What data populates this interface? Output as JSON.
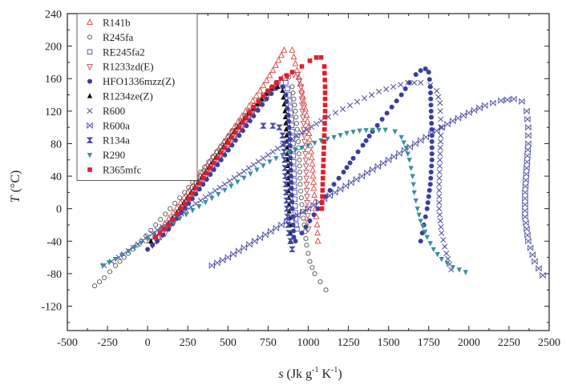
{
  "chart_data": {
    "type": "scatter",
    "title": "",
    "xlabel_main": "s",
    "xlabel_unit": " (Jk g",
    "xlabel_exp1": "-1",
    "xlabel_mid": " K",
    "xlabel_exp2": "-1",
    "xlabel_end": ")",
    "ylabel_main": "T",
    "ylabel_unit": " (°C)",
    "xlim": [
      -500,
      2500
    ],
    "ylim": [
      -150,
      240
    ],
    "xticks": [
      -500,
      -250,
      0,
      250,
      500,
      750,
      1000,
      1250,
      1500,
      1750,
      2000,
      2250,
      2500
    ],
    "yticks": [
      -120,
      -80,
      -40,
      0,
      40,
      80,
      120,
      160,
      200,
      240
    ],
    "grid": false,
    "legend_position": "top-left",
    "series": [
      {
        "name": "R141b",
        "marker": "triangle-up-open",
        "color": "#e0403a",
        "points": [
          [
            10,
            -40
          ],
          [
            80,
            -25
          ],
          [
            160,
            -5
          ],
          [
            250,
            20
          ],
          [
            340,
            45
          ],
          [
            430,
            70
          ],
          [
            520,
            95
          ],
          [
            610,
            120
          ],
          [
            700,
            145
          ],
          [
            780,
            170
          ],
          [
            850,
            195
          ],
          [
            900,
            195
          ],
          [
            930,
            170
          ],
          [
            960,
            145
          ],
          [
            990,
            115
          ],
          [
            1010,
            85
          ],
          [
            1025,
            55
          ],
          [
            1035,
            25
          ],
          [
            1045,
            0
          ],
          [
            1055,
            -20
          ],
          [
            1060,
            -40
          ]
        ]
      },
      {
        "name": "R245fa",
        "marker": "circle-open",
        "color": "#555555",
        "points": [
          [
            -330,
            -95
          ],
          [
            -270,
            -85
          ],
          [
            -200,
            -70
          ],
          [
            -120,
            -55
          ],
          [
            -40,
            -40
          ],
          [
            50,
            -20
          ],
          [
            140,
            0
          ],
          [
            230,
            20
          ],
          [
            330,
            45
          ],
          [
            430,
            70
          ],
          [
            530,
            95
          ],
          [
            630,
            120
          ],
          [
            720,
            140
          ],
          [
            800,
            155
          ],
          [
            850,
            162
          ],
          [
            880,
            162
          ],
          [
            900,
            150
          ],
          [
            920,
            120
          ],
          [
            935,
            90
          ],
          [
            945,
            60
          ],
          [
            950,
            30
          ],
          [
            960,
            5
          ],
          [
            975,
            -20
          ],
          [
            990,
            -45
          ],
          [
            1010,
            -65
          ],
          [
            1040,
            -80
          ],
          [
            1075,
            -90
          ],
          [
            1110,
            -100
          ]
        ]
      },
      {
        "name": "RE245fa2",
        "marker": "square-open",
        "color": "#4a4aa8",
        "points": [
          [
            40,
            -40
          ],
          [
            120,
            -25
          ],
          [
            200,
            -5
          ],
          [
            290,
            20
          ],
          [
            380,
            45
          ],
          [
            470,
            70
          ],
          [
            560,
            95
          ],
          [
            650,
            118
          ],
          [
            740,
            140
          ],
          [
            810,
            155
          ],
          [
            860,
            155
          ],
          [
            880,
            140
          ],
          [
            895,
            110
          ],
          [
            905,
            80
          ],
          [
            910,
            50
          ],
          [
            915,
            20
          ],
          [
            920,
            -5
          ],
          [
            925,
            -20
          ],
          [
            930,
            -25
          ]
        ]
      },
      {
        "name": "R1233zd(E)",
        "marker": "triangle-down-open",
        "color": "#b94b5a",
        "points": [
          [
            30,
            -45
          ],
          [
            110,
            -30
          ],
          [
            190,
            -10
          ],
          [
            280,
            15
          ],
          [
            370,
            40
          ],
          [
            460,
            65
          ],
          [
            550,
            90
          ],
          [
            640,
            115
          ],
          [
            730,
            138
          ],
          [
            810,
            155
          ],
          [
            870,
            162
          ],
          [
            910,
            165
          ],
          [
            935,
            165
          ],
          [
            955,
            150
          ],
          [
            965,
            120
          ],
          [
            975,
            90
          ],
          [
            985,
            60
          ],
          [
            990,
            30
          ],
          [
            995,
            0
          ],
          [
            1000,
            -25
          ]
        ]
      },
      {
        "name": "HFO1336mzz(Z)",
        "marker": "circle-filled",
        "color": "#3a3ea0",
        "points": [
          [
            0,
            -50
          ],
          [
            60,
            -40
          ],
          [
            130,
            -25
          ],
          [
            210,
            -5
          ],
          [
            300,
            18
          ],
          [
            390,
            42
          ],
          [
            480,
            66
          ],
          [
            570,
            90
          ],
          [
            660,
            114
          ],
          [
            740,
            135
          ],
          [
            800,
            148
          ],
          [
            840,
            150
          ],
          [
            860,
            140
          ],
          [
            875,
            115
          ],
          [
            885,
            85
          ],
          [
            890,
            55
          ],
          [
            895,
            25
          ],
          [
            900,
            0
          ],
          [
            905,
            -20
          ],
          [
            910,
            -35
          ],
          [
            920,
            -40
          ],
          [
            960,
            -30
          ],
          [
            1010,
            -15
          ],
          [
            1060,
            0
          ],
          [
            1110,
            15
          ],
          [
            1160,
            30
          ],
          [
            1220,
            45
          ],
          [
            1280,
            62
          ],
          [
            1340,
            78
          ],
          [
            1400,
            95
          ],
          [
            1460,
            110
          ],
          [
            1520,
            125
          ],
          [
            1580,
            140
          ],
          [
            1630,
            155
          ],
          [
            1670,
            165
          ],
          [
            1700,
            170
          ],
          [
            1730,
            172
          ],
          [
            1750,
            168
          ],
          [
            1760,
            150
          ],
          [
            1765,
            120
          ],
          [
            1770,
            90
          ],
          [
            1770,
            60
          ],
          [
            1760,
            30
          ],
          [
            1740,
            0
          ],
          [
            1720,
            -20
          ],
          [
            1700,
            -40
          ]
        ]
      },
      {
        "name": "R1234ze(Z)",
        "marker": "triangle-up-filled",
        "color": "#111111",
        "points": [
          [
            20,
            -40
          ],
          [
            100,
            -25
          ],
          [
            180,
            -5
          ],
          [
            270,
            20
          ],
          [
            360,
            45
          ],
          [
            450,
            70
          ],
          [
            540,
            95
          ],
          [
            630,
            118
          ],
          [
            710,
            135
          ],
          [
            770,
            148
          ],
          [
            810,
            150
          ],
          [
            840,
            145
          ],
          [
            855,
            120
          ],
          [
            865,
            90
          ],
          [
            870,
            60
          ],
          [
            875,
            30
          ],
          [
            880,
            5
          ],
          [
            885,
            -20
          ],
          [
            890,
            -40
          ]
        ]
      },
      {
        "name": "R600",
        "marker": "x",
        "color": "#4a4aa8",
        "points": [
          [
            -270,
            -70
          ],
          [
            -180,
            -60
          ],
          [
            -90,
            -48
          ],
          [
            0,
            -35
          ],
          [
            90,
            -22
          ],
          [
            180,
            -10
          ],
          [
            270,
            2
          ],
          [
            360,
            14
          ],
          [
            450,
            26
          ],
          [
            540,
            38
          ],
          [
            630,
            50
          ],
          [
            720,
            62
          ],
          [
            810,
            74
          ],
          [
            900,
            86
          ],
          [
            990,
            97
          ],
          [
            1080,
            108
          ],
          [
            1170,
            118
          ],
          [
            1260,
            127
          ],
          [
            1350,
            136
          ],
          [
            1440,
            144
          ],
          [
            1530,
            150
          ],
          [
            1620,
            155
          ],
          [
            1700,
            155
          ],
          [
            1760,
            152
          ],
          [
            1800,
            145
          ],
          [
            1820,
            130
          ],
          [
            1825,
            110
          ],
          [
            1825,
            90
          ],
          [
            1820,
            60
          ],
          [
            1815,
            30
          ],
          [
            1815,
            0
          ],
          [
            1830,
            -30
          ],
          [
            1860,
            -55
          ],
          [
            1890,
            -75
          ]
        ]
      },
      {
        "name": "R600a",
        "marker": "bowtie",
        "color": "#4a4aa8",
        "points": [
          [
            400,
            -70
          ],
          [
            500,
            -60
          ],
          [
            600,
            -48
          ],
          [
            700,
            -36
          ],
          [
            800,
            -24
          ],
          [
            900,
            -12
          ],
          [
            1000,
            0
          ],
          [
            1100,
            12
          ],
          [
            1200,
            24
          ],
          [
            1300,
            36
          ],
          [
            1400,
            48
          ],
          [
            1500,
            60
          ],
          [
            1600,
            72
          ],
          [
            1700,
            84
          ],
          [
            1800,
            96
          ],
          [
            1900,
            108
          ],
          [
            2000,
            118
          ],
          [
            2100,
            127
          ],
          [
            2200,
            133
          ],
          [
            2280,
            135
          ],
          [
            2330,
            132
          ],
          [
            2360,
            120
          ],
          [
            2370,
            100
          ],
          [
            2370,
            80
          ],
          [
            2360,
            50
          ],
          [
            2350,
            20
          ],
          [
            2350,
            -10
          ],
          [
            2370,
            -40
          ],
          [
            2410,
            -65
          ],
          [
            2460,
            -82
          ]
        ]
      },
      {
        "name": "R134a",
        "marker": "hourglass",
        "color": "#4a4aa8",
        "points": [
          [
            720,
            102
          ],
          [
            780,
            102
          ],
          [
            820,
            100
          ],
          [
            840,
            90
          ],
          [
            850,
            70
          ],
          [
            855,
            50
          ],
          [
            860,
            30
          ],
          [
            865,
            10
          ],
          [
            870,
            -10
          ],
          [
            880,
            -30
          ],
          [
            900,
            -50
          ]
        ]
      },
      {
        "name": "R290",
        "marker": "triangle-down-filled",
        "color": "#3a8ea0",
        "points": [
          [
            -280,
            -70
          ],
          [
            -200,
            -62
          ],
          [
            -120,
            -52
          ],
          [
            -40,
            -42
          ],
          [
            40,
            -32
          ],
          [
            120,
            -22
          ],
          [
            200,
            -12
          ],
          [
            280,
            -2
          ],
          [
            360,
            8
          ],
          [
            440,
            18
          ],
          [
            520,
            28
          ],
          [
            600,
            38
          ],
          [
            680,
            48
          ],
          [
            760,
            58
          ],
          [
            840,
            66
          ],
          [
            920,
            72
          ],
          [
            1000,
            78
          ],
          [
            1080,
            84
          ],
          [
            1160,
            88
          ],
          [
            1240,
            93
          ],
          [
            1320,
            96
          ],
          [
            1400,
            97
          ],
          [
            1480,
            97
          ],
          [
            1540,
            95
          ],
          [
            1580,
            88
          ],
          [
            1610,
            75
          ],
          [
            1630,
            60
          ],
          [
            1650,
            40
          ],
          [
            1660,
            20
          ],
          [
            1680,
            0
          ],
          [
            1700,
            -15
          ],
          [
            1740,
            -35
          ],
          [
            1780,
            -50
          ],
          [
            1830,
            -62
          ],
          [
            1900,
            -72
          ],
          [
            1980,
            -78
          ]
        ]
      },
      {
        "name": "R365mfc",
        "marker": "square-filled",
        "color": "#e01f2a",
        "points": [
          [
            50,
            -35
          ],
          [
            130,
            -20
          ],
          [
            210,
            0
          ],
          [
            300,
            25
          ],
          [
            390,
            50
          ],
          [
            480,
            75
          ],
          [
            570,
            100
          ],
          [
            660,
            125
          ],
          [
            750,
            145
          ],
          [
            830,
            160
          ],
          [
            900,
            168
          ],
          [
            960,
            175
          ],
          [
            1010,
            182
          ],
          [
            1050,
            186
          ],
          [
            1080,
            186
          ],
          [
            1100,
            175
          ],
          [
            1105,
            150
          ],
          [
            1105,
            120
          ],
          [
            1100,
            90
          ],
          [
            1095,
            60
          ],
          [
            1090,
            30
          ],
          [
            1085,
            0
          ]
        ]
      }
    ]
  }
}
